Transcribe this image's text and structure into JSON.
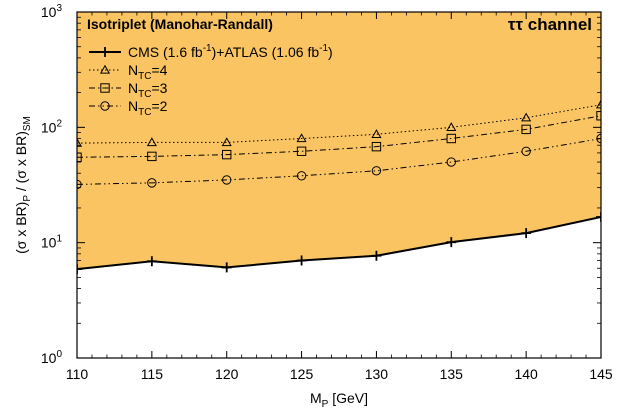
{
  "chart_data": {
    "type": "line",
    "title": "Isotriplet (Manohar-Randall)",
    "annotation": "ττ channel",
    "xlabel": {
      "main": "M",
      "sub": "P",
      "tail": " [GeV]"
    },
    "ylabel": {
      "p1": "(σ x BR)",
      "s1": "P",
      "p2": " / (σ x BR)",
      "s2": "SM"
    },
    "xlim": [
      110,
      145
    ],
    "ylim": [
      1,
      1000
    ],
    "yscale": "log",
    "xticks": [
      110,
      115,
      120,
      125,
      130,
      135,
      140,
      145
    ],
    "yticks": [
      {
        "value": 1,
        "base": "10",
        "exp": "0"
      },
      {
        "value": 10,
        "base": "10",
        "exp": "1"
      },
      {
        "value": 100,
        "base": "10",
        "exp": "2"
      },
      {
        "value": 1000,
        "base": "10",
        "exp": "3"
      }
    ],
    "exclusion_fill_color": "#fbc463",
    "legend_position": "top-left",
    "series": [
      {
        "name": "CMS (1.6 fb-1)+ATLAS (1.06 fb-1)",
        "legend": {
          "t1": "CMS (1.6 fb",
          "sup1": "-1",
          "t2": ")+ATLAS (1.06 fb",
          "sup2": "-1",
          "t3": ")"
        },
        "style": "solid",
        "marker": "plus",
        "x": [
          110,
          115,
          120,
          125,
          130,
          135,
          140,
          145
        ],
        "y": [
          5.9,
          6.9,
          6.1,
          7.0,
          7.7,
          10.1,
          12.1,
          16.7
        ]
      },
      {
        "name": "NTC=4",
        "legend": {
          "t1": "N",
          "sub": "TC",
          "t2": "=4"
        },
        "style": "dotted",
        "marker": "triangle",
        "x": [
          110,
          115,
          120,
          125,
          130,
          135,
          140,
          145
        ],
        "y": [
          73,
          74,
          74,
          80,
          87,
          100,
          121,
          157
        ]
      },
      {
        "name": "NTC=3",
        "legend": {
          "t1": "N",
          "sub": "TC",
          "t2": "=3"
        },
        "style": "dash-dot",
        "marker": "square",
        "x": [
          110,
          115,
          120,
          125,
          130,
          135,
          140,
          145
        ],
        "y": [
          55,
          56,
          58,
          62,
          68,
          80,
          96,
          126
        ]
      },
      {
        "name": "NTC=2",
        "legend": {
          "t1": "N",
          "sub": "TC",
          "t2": "=2"
        },
        "style": "dash-dot-dot",
        "marker": "circle",
        "x": [
          110,
          115,
          120,
          125,
          130,
          135,
          140,
          145
        ],
        "y": [
          32,
          33,
          35,
          38,
          42,
          50,
          62,
          80
        ]
      }
    ]
  }
}
